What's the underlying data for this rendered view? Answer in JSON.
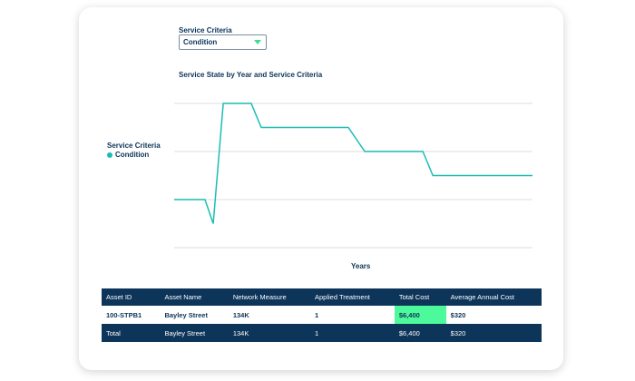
{
  "filter": {
    "label": "Service Criteria",
    "value": "Condition"
  },
  "chart_data": {
    "type": "line",
    "title": "Service State by Year and Service Criteria",
    "xlabel": "Years",
    "ylabel": "",
    "legend": {
      "title": "Service Criteria",
      "entries": [
        "Condition"
      ],
      "placement": "left"
    },
    "ylim": [
      0,
      3
    ],
    "xlim": [
      0,
      100
    ],
    "grid": true,
    "gridlines": [
      0,
      1,
      2,
      3
    ],
    "series": [
      {
        "name": "Condition",
        "color": "#1cbcb4",
        "x": [
          0,
          8.6,
          10.9,
          13.7,
          21.5,
          24.3,
          48.6,
          53.2,
          69.4,
          72.2,
          100
        ],
        "y": [
          1,
          1,
          0.5,
          3,
          3,
          2.5,
          2.5,
          2,
          2,
          1.5,
          1.5
        ]
      }
    ]
  },
  "table": {
    "headers": [
      "Asset ID",
      "Asset Name",
      "Network Measure",
      "Applied Treatment",
      "Total Cost",
      "Average Annual Cost"
    ],
    "rows": [
      [
        "100-STPB1",
        "Bayley Street",
        "134K",
        "1",
        "$6,400",
        "$320"
      ]
    ],
    "total": [
      "Total",
      "Bayley Street",
      "134K",
      "1",
      "$6,400",
      "$320"
    ]
  }
}
